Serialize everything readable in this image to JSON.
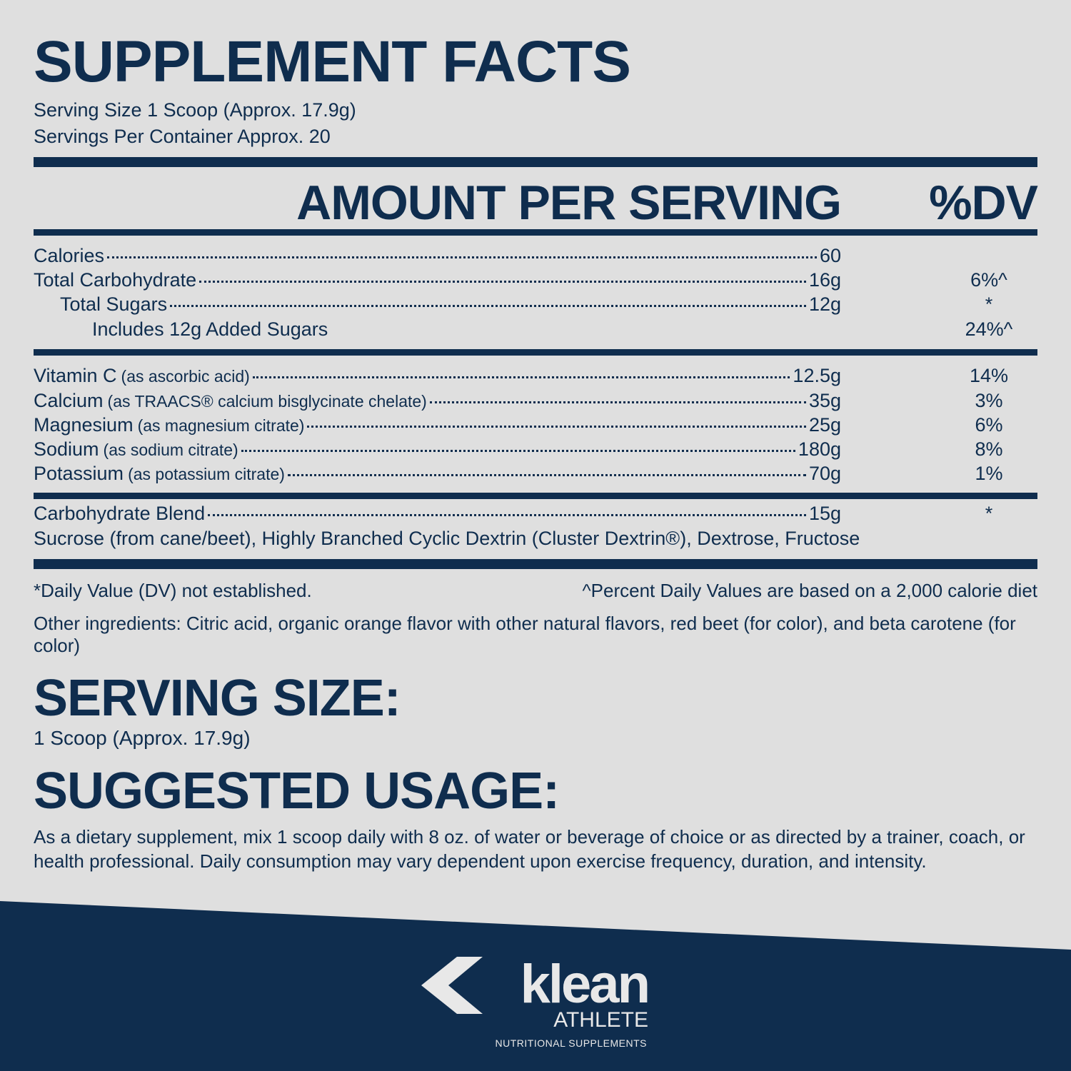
{
  "title": "SUPPLEMENT FACTS",
  "serving_size": "Serving Size 1 Scoop (Approx. 17.9g)",
  "servings_per_container": "Servings Per Container Approx. 20",
  "table": {
    "header": {
      "amount": "AMOUNT PER SERVING",
      "dv": "%DV"
    },
    "sections": [
      {
        "rows": [
          {
            "name": "Calories",
            "amount": "60"
          },
          {
            "name": "Total Carbohydrate",
            "amount": "16g",
            "dv": "6%^"
          },
          {
            "name": "Total Sugars",
            "amount": "12g",
            "dv": "*"
          },
          {
            "name": "Includes 12g Added Sugars",
            "dv": "24%^"
          }
        ]
      },
      {
        "rows": [
          {
            "name": "Vitamin C",
            "note": "(as ascorbic acid)",
            "amount": "12.5g",
            "dv": "14%"
          },
          {
            "name": "Calcium",
            "note": "(as TRAACS® calcium bisglycinate chelate)",
            "amount": "35g",
            "dv": "3%"
          },
          {
            "name": "Magnesium",
            "note": "(as magnesium citrate)",
            "amount": "25g",
            "dv": "6%"
          },
          {
            "name": "Sodium",
            "note": "(as sodium citrate)",
            "amount": "180g",
            "dv": "8%"
          },
          {
            "name": "Potassium",
            "note": "(as potassium citrate)",
            "amount": "70g",
            "dv": "1%"
          }
        ]
      },
      {
        "rows": [
          {
            "name": "Carbohydrate Blend",
            "amount": "15g",
            "dv": "*"
          }
        ],
        "ingredients": "Sucrose (from cane/beet), Highly Branched Cyclic Dextrin (Cluster Dextrin®), Dextrose, Fructose"
      }
    ]
  },
  "footnotes": {
    "dv": "*Daily Value (DV) not established.",
    "percent": "^Percent Daily Values are based on a 2,000 calorie diet"
  },
  "other_ingredients": "Other ingredients: Citric acid, organic orange flavor with other natural flavors, red beet (for color), and beta carotene (for color)",
  "serving_size_section": {
    "heading": "SERVING SIZE:",
    "text": "1 Scoop (Approx. 17.9g)"
  },
  "usage_section": {
    "heading": "SUGGESTED USAGE:",
    "text": "As a dietary supplement, mix 1 scoop daily with 8 oz. of water or beverage of choice or as directed by a trainer, coach, or health professional. Daily consumption may vary dependent upon exercise frequency, duration, and intensity."
  },
  "logo": {
    "brand": "klean",
    "sub": "ATHLETE",
    "tagline": "NUTRITIONAL SUPPLEMENTS"
  }
}
